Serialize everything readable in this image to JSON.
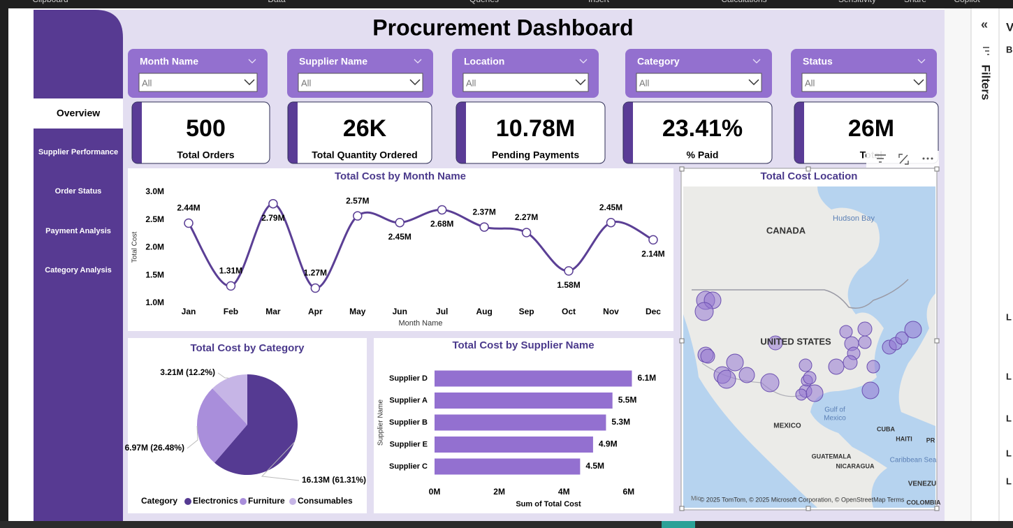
{
  "ribbon": [
    "Clipboard",
    "Data",
    "Queries",
    "Insert",
    "Calculations",
    "Sensitivity",
    "Share",
    "Copilot"
  ],
  "header": {
    "title": "Procurement Dashboard"
  },
  "nav": [
    "Overview",
    "Supplier Performance",
    "Order Status",
    "Payment Analysis",
    "Category Analysis"
  ],
  "slicers": [
    {
      "label": "Month Name",
      "value": "All"
    },
    {
      "label": "Supplier Name",
      "value": "All"
    },
    {
      "label": "Location",
      "value": "All"
    },
    {
      "label": "Category",
      "value": "All"
    },
    {
      "label": "Status",
      "value": "All"
    }
  ],
  "kpis": [
    {
      "value": "500",
      "label": "Total Orders"
    },
    {
      "value": "26K",
      "label": "Total Quantity Ordered"
    },
    {
      "value": "10.78M",
      "label": "Pending Payments"
    },
    {
      "value": "23.41%",
      "label": "% Paid"
    },
    {
      "value": "26M",
      "label": "Total"
    }
  ],
  "chart_data": [
    {
      "type": "line",
      "title": "Total Cost by Month Name",
      "x_label": "Month Name",
      "y_label": "Total Cost",
      "categories": [
        "Jan",
        "Feb",
        "Mar",
        "Apr",
        "May",
        "Jun",
        "Jul",
        "Aug",
        "Sep",
        "Oct",
        "Nov",
        "Dec"
      ],
      "values": [
        2.44,
        1.31,
        2.79,
        1.27,
        2.57,
        2.45,
        2.68,
        2.37,
        2.27,
        1.58,
        2.45,
        2.14
      ],
      "value_labels": [
        "2.44M",
        "1.31M",
        "2.79M",
        "1.27M",
        "2.57M",
        "2.45M",
        "2.68M",
        "2.37M",
        "2.27M",
        "1.58M",
        "2.45M",
        "2.14M"
      ],
      "color": "#5b3f95",
      "ylim": [
        1,
        3
      ],
      "yticks": [
        {
          "value": 1,
          "label": "1.0M"
        },
        {
          "value": 1.5,
          "label": "1.5M"
        },
        {
          "value": 2,
          "label": "2.0M"
        },
        {
          "value": 2.5,
          "label": "2.5M"
        },
        {
          "value": 3,
          "label": "3.0M"
        }
      ],
      "grid": false
    },
    {
      "type": "pie",
      "title": "Total Cost by Category",
      "legend_title": "Category",
      "categories": [
        "Electronics",
        "Furniture",
        "Consumables"
      ],
      "values": [
        16.13,
        6.97,
        3.21
      ],
      "percents": [
        61.31,
        26.48,
        12.2
      ],
      "value_labels": [
        "16.13M (61.31%)",
        "6.97M (26.48%)",
        "3.21M (12.2%)"
      ],
      "colors": [
        "#553a92",
        "#a98edb",
        "#c6b5e6"
      ]
    },
    {
      "type": "bar",
      "orientation": "horizontal",
      "title": "Total Cost by Supplier Name",
      "x_label": "Sum of Total Cost",
      "y_label": "Supplier Name",
      "categories": [
        "Supplier D",
        "Supplier A",
        "Supplier B",
        "Supplier E",
        "Supplier C"
      ],
      "values": [
        6.1,
        5.5,
        5.3,
        4.9,
        4.5
      ],
      "value_labels": [
        "6.1M",
        "5.5M",
        "5.3M",
        "4.9M",
        "4.5M"
      ],
      "color": "#9370d0",
      "xlim": [
        0,
        6.5
      ],
      "xticks": [
        {
          "value": 0,
          "label": "0M"
        },
        {
          "value": 2,
          "label": "2M"
        },
        {
          "value": 4,
          "label": "4M"
        },
        {
          "value": 6,
          "label": "6M"
        }
      ]
    }
  ],
  "map": {
    "title": "Total Cost Location",
    "labels": [
      "CANADA",
      "Hudson Bay",
      "UNITED STATES",
      "Gulf of",
      "Mexico",
      "MEXICO",
      "CUBA",
      "HAITI",
      "PR",
      "GUATEMALA",
      "NICARAGUA",
      "Caribbean Sea",
      "VENEZU",
      "COLOMBIA",
      "Mic"
    ],
    "attribution": "© 2025 TomTom, © 2025 Microsoft Corporation, © OpenStreetMap  Terms"
  },
  "side_pane": {
    "collapse": "«",
    "title": "Filters",
    "letters": [
      "V",
      "B",
      "L",
      "L",
      "L",
      "L",
      "L"
    ]
  }
}
